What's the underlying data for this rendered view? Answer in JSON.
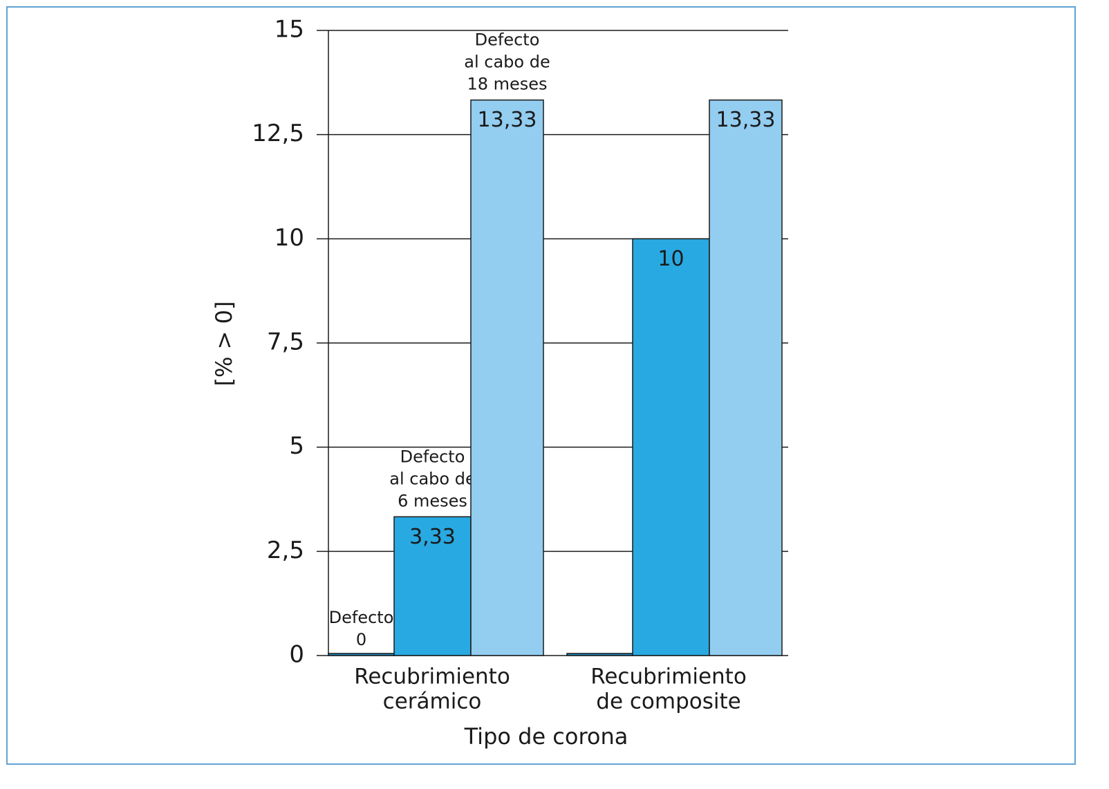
{
  "chart_data": {
    "type": "bar",
    "y_label": "[% > 0]",
    "x_label": "Tipo de corona",
    "categories": [
      [
        "Recubrimiento",
        "cerámico"
      ],
      [
        "Recubrimiento",
        "de composite"
      ]
    ],
    "series": [
      {
        "name": [
          "Defecto",
          "0"
        ],
        "color": "#1d87c2",
        "values": [
          0,
          0
        ]
      },
      {
        "name": [
          "Defecto",
          "al cabo de",
          "6 meses"
        ],
        "color": "#29a9e1",
        "values": [
          3.33,
          10
        ],
        "value_labels": [
          "3,33",
          "10"
        ]
      },
      {
        "name": [
          "Defecto",
          "al cabo de",
          "18 meses"
        ],
        "color": "#93cdf0",
        "values": [
          13.33,
          13.33
        ],
        "value_labels": [
          "13,33",
          "13,33"
        ]
      }
    ],
    "ylim": [
      0,
      15
    ],
    "yticks": [
      0,
      {
        "value": 2.5,
        "label": "2,5"
      },
      5,
      {
        "value": 7.5,
        "label": "7,5"
      },
      10,
      {
        "value": 12.5,
        "label": "12,5"
      },
      15
    ],
    "grid": true
  }
}
